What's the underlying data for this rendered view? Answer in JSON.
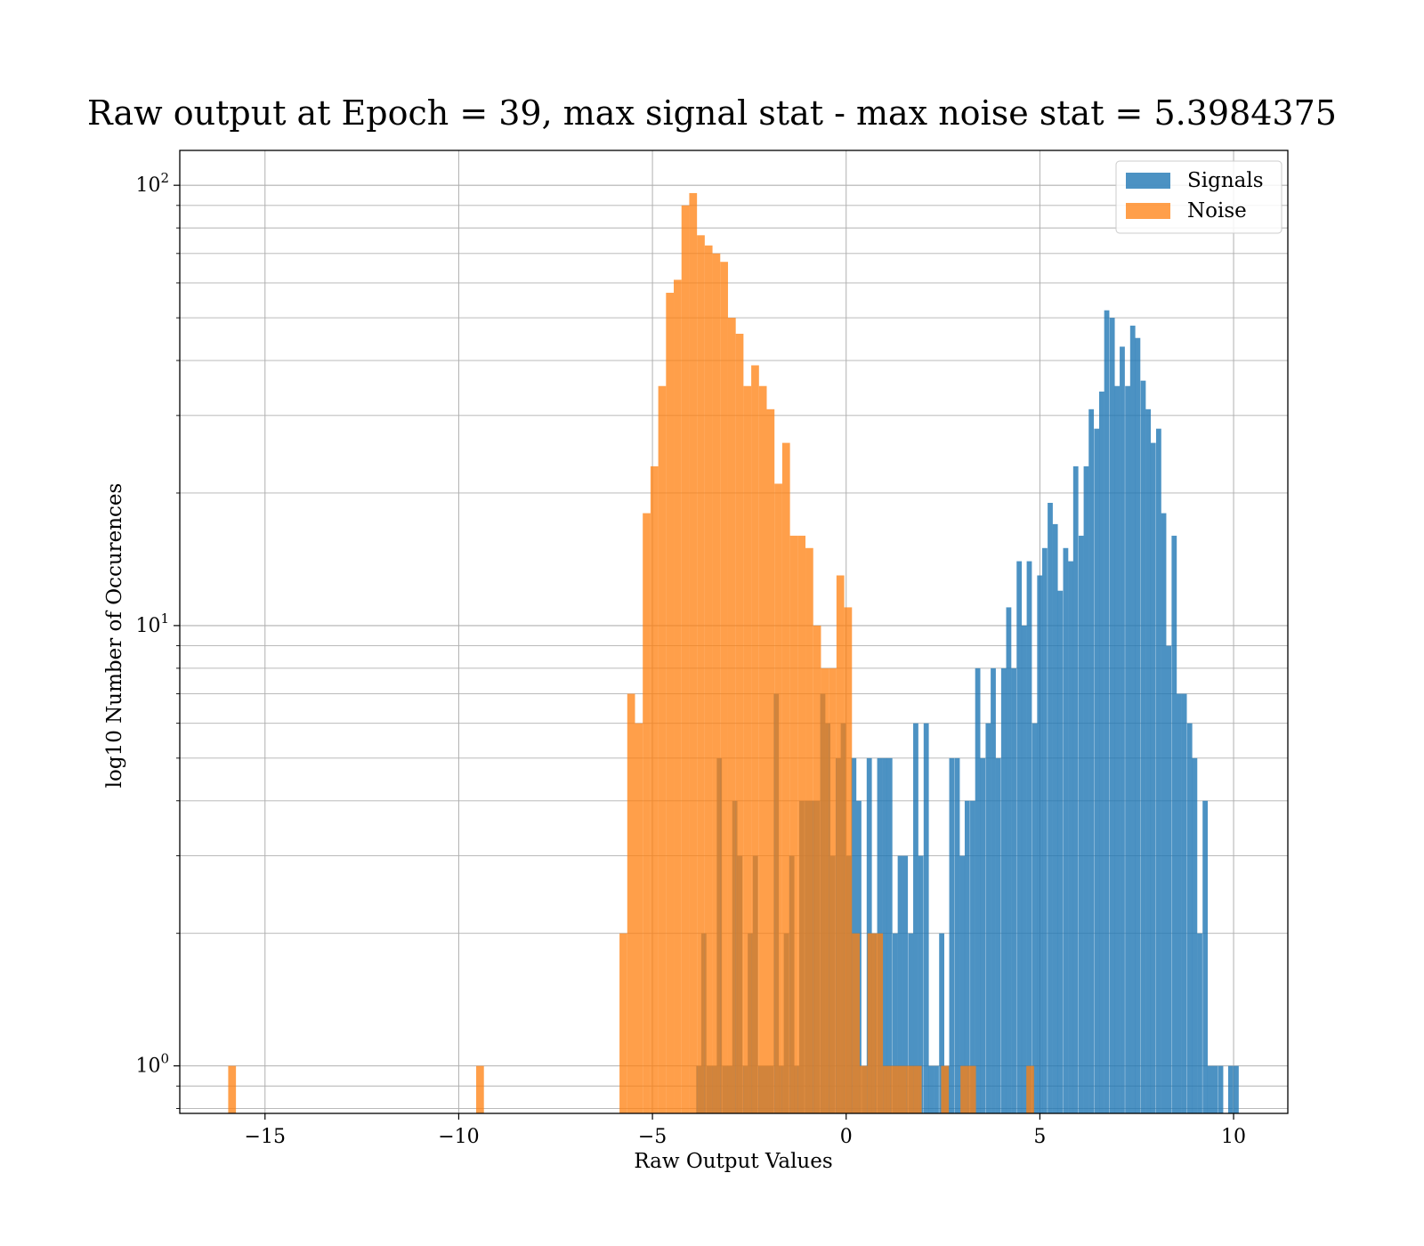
{
  "chart_data": {
    "type": "bar",
    "title": "Raw output at Epoch = 39, max signal stat - max noise stat = 5.3984375",
    "xlabel": "Raw Output Values",
    "ylabel": "log10 Number of Occurences",
    "yscale": "log",
    "xlim": [
      -17.2,
      11.4
    ],
    "ylim": [
      0.78,
      120
    ],
    "grid": true,
    "legend_position": "top-right",
    "x_ticks": [
      -15,
      -10,
      -5,
      0,
      5,
      10
    ],
    "x_tick_labels": [
      "−15",
      "−10",
      "−5",
      "0",
      "5",
      "10"
    ],
    "y_ticks": [
      1,
      10,
      100
    ],
    "y_tick_labels": [
      {
        "base": "10",
        "exp": "0"
      },
      {
        "base": "10",
        "exp": "1"
      },
      {
        "base": "10",
        "exp": "2"
      }
    ],
    "series": [
      {
        "name": "Signals",
        "color": "#1f77b4",
        "opacity": 0.8,
        "bin_width": 0.133,
        "bins": [
          [
            -3.87,
            1
          ],
          [
            -3.74,
            2
          ],
          [
            -3.6,
            1
          ],
          [
            -3.47,
            1
          ],
          [
            -3.34,
            5
          ],
          [
            -3.2,
            1
          ],
          [
            -3.07,
            1
          ],
          [
            -2.94,
            4
          ],
          [
            -2.81,
            3
          ],
          [
            -2.67,
            1
          ],
          [
            -2.54,
            2
          ],
          [
            -2.41,
            3
          ],
          [
            -2.27,
            1
          ],
          [
            -2.14,
            1
          ],
          [
            -2.01,
            1
          ],
          [
            -1.87,
            7
          ],
          [
            -1.74,
            1
          ],
          [
            -1.61,
            2
          ],
          [
            -1.47,
            3
          ],
          [
            -1.34,
            1
          ],
          [
            -1.21,
            4
          ],
          [
            -1.07,
            4
          ],
          [
            -0.94,
            4
          ],
          [
            -0.81,
            4
          ],
          [
            -0.67,
            7
          ],
          [
            -0.54,
            6
          ],
          [
            -0.41,
            3
          ],
          [
            -0.27,
            5
          ],
          [
            -0.14,
            6
          ],
          [
            0.0,
            3
          ],
          [
            0.13,
            5
          ],
          [
            0.26,
            4
          ],
          [
            0.4,
            1
          ],
          [
            0.53,
            5
          ],
          [
            0.66,
            2
          ],
          [
            0.8,
            5
          ],
          [
            0.93,
            5
          ],
          [
            1.06,
            5
          ],
          [
            1.2,
            2
          ],
          [
            1.33,
            3
          ],
          [
            1.46,
            3
          ],
          [
            1.6,
            2
          ],
          [
            1.73,
            6
          ],
          [
            1.86,
            3
          ],
          [
            2.0,
            6
          ],
          [
            2.13,
            1
          ],
          [
            2.26,
            1
          ],
          [
            2.4,
            2
          ],
          [
            2.53,
            1
          ],
          [
            2.66,
            5
          ],
          [
            2.8,
            5
          ],
          [
            2.93,
            3
          ],
          [
            3.06,
            4
          ],
          [
            3.2,
            4
          ],
          [
            3.33,
            8
          ],
          [
            3.46,
            5
          ],
          [
            3.6,
            6
          ],
          [
            3.73,
            8
          ],
          [
            3.86,
            5
          ],
          [
            4.0,
            8
          ],
          [
            4.13,
            11
          ],
          [
            4.26,
            8
          ],
          [
            4.4,
            14
          ],
          [
            4.53,
            10
          ],
          [
            4.66,
            14
          ],
          [
            4.8,
            6
          ],
          [
            4.93,
            13
          ],
          [
            5.06,
            15
          ],
          [
            5.2,
            19
          ],
          [
            5.33,
            17
          ],
          [
            5.46,
            12
          ],
          [
            5.6,
            15
          ],
          [
            5.73,
            14
          ],
          [
            5.86,
            23
          ],
          [
            6.0,
            16
          ],
          [
            6.13,
            23
          ],
          [
            6.26,
            31
          ],
          [
            6.4,
            28
          ],
          [
            6.53,
            34
          ],
          [
            6.66,
            52
          ],
          [
            6.8,
            50
          ],
          [
            6.93,
            35
          ],
          [
            7.06,
            43
          ],
          [
            7.2,
            35
          ],
          [
            7.33,
            48
          ],
          [
            7.46,
            45
          ],
          [
            7.6,
            36
          ],
          [
            7.73,
            31
          ],
          [
            7.86,
            26
          ],
          [
            8.0,
            28
          ],
          [
            8.13,
            18
          ],
          [
            8.26,
            9
          ],
          [
            8.4,
            16
          ],
          [
            8.53,
            7
          ],
          [
            8.66,
            7
          ],
          [
            8.8,
            6
          ],
          [
            8.93,
            5
          ],
          [
            9.06,
            2
          ],
          [
            9.2,
            4
          ],
          [
            9.33,
            1
          ],
          [
            9.46,
            1
          ],
          [
            9.6,
            1
          ],
          [
            9.73,
            0
          ],
          [
            9.86,
            1
          ],
          [
            10.0,
            1
          ]
        ]
      },
      {
        "name": "Noise",
        "color": "#ff7f0e",
        "opacity": 0.75,
        "bin_width": 0.2,
        "bins": [
          [
            -15.95,
            1
          ],
          [
            -9.55,
            1
          ],
          [
            -5.85,
            2
          ],
          [
            -5.65,
            7
          ],
          [
            -5.45,
            6
          ],
          [
            -5.25,
            18
          ],
          [
            -5.05,
            23
          ],
          [
            -4.85,
            35
          ],
          [
            -4.65,
            57
          ],
          [
            -4.45,
            61
          ],
          [
            -4.25,
            90
          ],
          [
            -4.05,
            96
          ],
          [
            -3.85,
            77
          ],
          [
            -3.65,
            73
          ],
          [
            -3.45,
            70
          ],
          [
            -3.25,
            67
          ],
          [
            -3.05,
            50
          ],
          [
            -2.85,
            46
          ],
          [
            -2.65,
            35
          ],
          [
            -2.45,
            39
          ],
          [
            -2.25,
            35
          ],
          [
            -2.05,
            31
          ],
          [
            -1.85,
            21
          ],
          [
            -1.65,
            26
          ],
          [
            -1.45,
            16
          ],
          [
            -1.25,
            16
          ],
          [
            -1.05,
            15
          ],
          [
            -0.85,
            10
          ],
          [
            -0.65,
            8
          ],
          [
            -0.45,
            8
          ],
          [
            -0.25,
            13
          ],
          [
            -0.05,
            11
          ],
          [
            0.15,
            2
          ],
          [
            0.35,
            1
          ],
          [
            0.55,
            2
          ],
          [
            0.75,
            2
          ],
          [
            0.95,
            1
          ],
          [
            1.15,
            1
          ],
          [
            1.35,
            1
          ],
          [
            1.55,
            1
          ],
          [
            1.75,
            1
          ],
          [
            2.45,
            1
          ],
          [
            2.95,
            1
          ],
          [
            3.15,
            1
          ],
          [
            4.65,
            1
          ]
        ]
      }
    ]
  }
}
